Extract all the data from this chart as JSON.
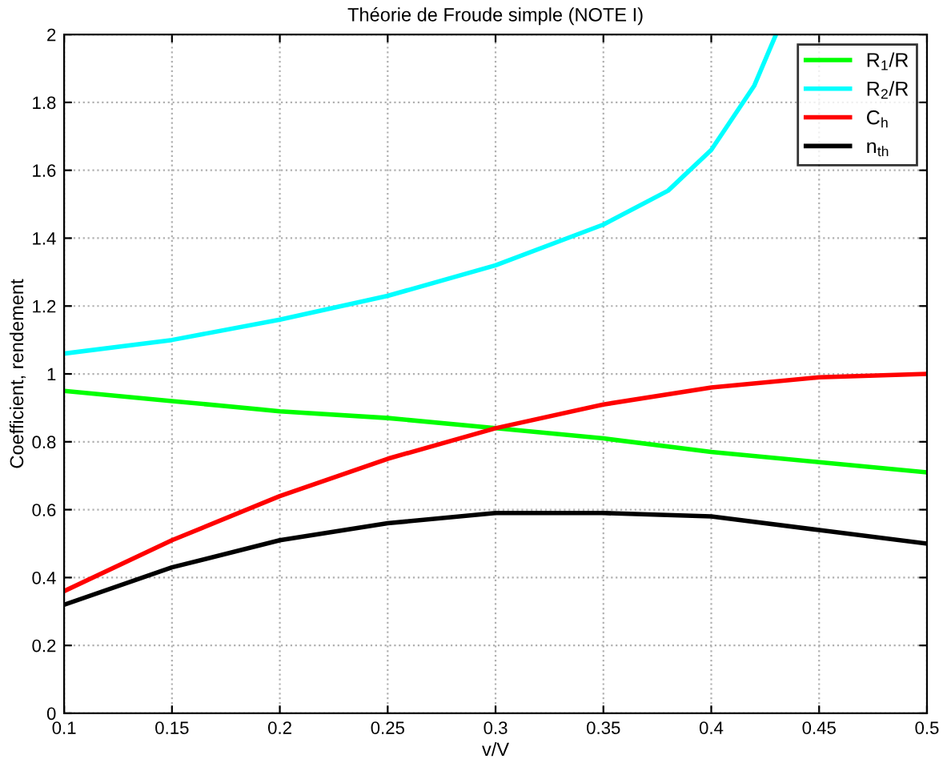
{
  "chart_data": {
    "type": "line",
    "title": "Théorie de Froude simple (NOTE I)",
    "xlabel": "v/V",
    "ylabel": "Coefficient, rendement",
    "x": [
      0.1,
      0.15,
      0.2,
      0.25,
      0.3,
      0.35,
      0.4,
      0.45,
      0.5
    ],
    "series": [
      {
        "name": "R$_{1}$/R",
        "color": "#00ff00",
        "values": [
          0.95,
          0.92,
          0.89,
          0.87,
          0.84,
          0.81,
          0.77,
          0.74,
          0.71
        ]
      },
      {
        "name": "R$_{2}$/R",
        "color": "#00ffff",
        "x": [
          0.1,
          0.15,
          0.2,
          0.25,
          0.3,
          0.35,
          0.38,
          0.4,
          0.42,
          0.43
        ],
        "values": [
          1.06,
          1.1,
          1.16,
          1.23,
          1.32,
          1.44,
          1.54,
          1.66,
          1.85,
          2.0
        ]
      },
      {
        "name": "C$_{h}$",
        "color": "#ff0000",
        "values": [
          0.36,
          0.51,
          0.64,
          0.75,
          0.84,
          0.91,
          0.96,
          0.99,
          1.0
        ]
      },
      {
        "name": "n$_{th}$",
        "color": "#000000",
        "values": [
          0.32,
          0.43,
          0.51,
          0.56,
          0.59,
          0.59,
          0.58,
          0.54,
          0.5
        ]
      }
    ],
    "xlim": [
      0.1,
      0.5
    ],
    "ylim": [
      0,
      2
    ],
    "xticks": [
      0.1,
      0.15,
      0.2,
      0.25,
      0.3,
      0.35,
      0.4,
      0.45,
      0.5
    ],
    "yticks": [
      0,
      0.2,
      0.4,
      0.6,
      0.8,
      1,
      1.2,
      1.4,
      1.6,
      1.8,
      2
    ],
    "grid": true,
    "legend": "top right",
    "marker": "none",
    "line_style": "solid"
  }
}
